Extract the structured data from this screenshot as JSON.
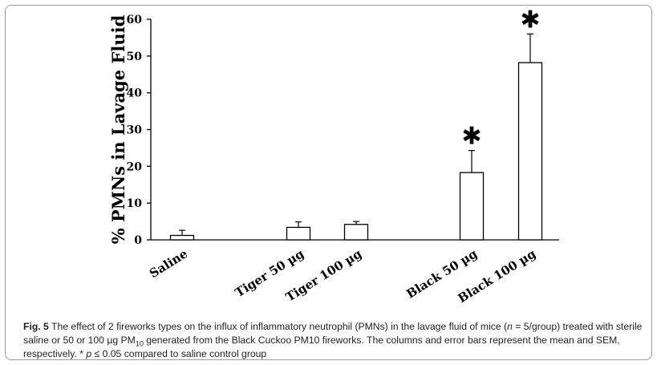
{
  "chart_data": {
    "type": "bar",
    "categories": [
      "Saline",
      "Tiger 50 µg",
      "Tiger 100 µg",
      "Black 50 µg",
      "Black 100 µg"
    ],
    "values": [
      1.2,
      3.4,
      4.2,
      18.3,
      48.2
    ],
    "errors": [
      1.4,
      1.5,
      0.8,
      6.0,
      7.8
    ],
    "significant": [
      false,
      false,
      false,
      true,
      true
    ],
    "significance_marker": "✱",
    "ylabel": "% PMNs in Lavage Fluid",
    "ylim": [
      0,
      60
    ],
    "yticks": [
      0,
      10,
      20,
      30,
      40,
      50,
      60
    ],
    "grid": false,
    "bar_fill": "#ffffff",
    "bar_edge": "#000000"
  },
  "caption": {
    "label": "Fig. 5",
    "part1": " The effect of 2 fireworks types on the influx of inflammatory neutrophil (PMNs) in the lavage fluid of mice (",
    "n_symbol": "n",
    "part2": " = 5/group) treated with sterile saline or 50 or 100 µg PM",
    "pm_sub": "10",
    "part3": " generated from the Black Cuckoo PM10 fireworks. The columns and error bars represent the mean and SEM, respectively. * ",
    "p_symbol": "p",
    "part4": " ",
    "le_symbol": "≤",
    "part5": " 0.05 compared to saline control group"
  }
}
